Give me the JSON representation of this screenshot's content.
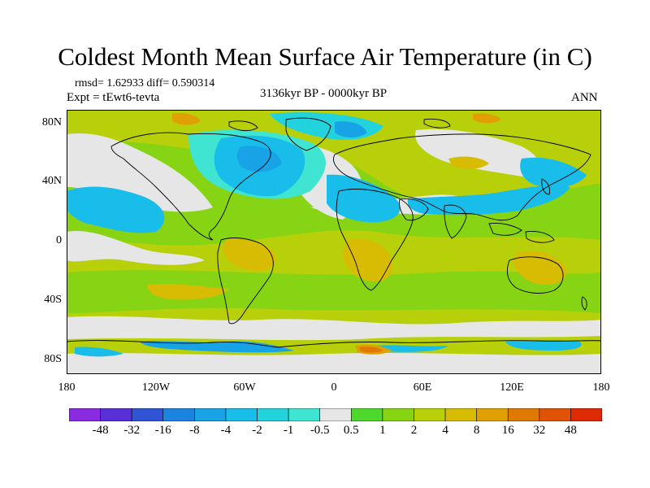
{
  "title": "Coldest Month Mean Surface Air Temperature (in C)",
  "stats": "rmsd= 1.62933 diff= 0.590314",
  "experiment": "Expt = tEwt6-tevta",
  "period": "3136kyr BP - 0000kyr BP",
  "season": "ANN",
  "lat_labels": [
    "80N",
    "40N",
    "0",
    "40S",
    "80S"
  ],
  "lon_labels": [
    "180",
    "120W",
    "60W",
    "0",
    "60E",
    "120E",
    "180"
  ],
  "colorbar": {
    "labels": [
      "-48",
      "-32",
      "-16",
      "-8",
      "-4",
      "-2",
      "-1",
      "-0.5",
      "0.5",
      "1",
      "2",
      "4",
      "8",
      "16",
      "32",
      "48"
    ],
    "colors": [
      "#8a2be2",
      "#5a2ed8",
      "#2f55d6",
      "#1a84e0",
      "#17a3e6",
      "#18bde9",
      "#22d2dc",
      "#3fe5d0",
      "#e6e6e6",
      "#4ed82b",
      "#86d414",
      "#b8d00a",
      "#d8bc04",
      "#e0a004",
      "#e07804",
      "#e05204",
      "#e02a04"
    ]
  }
}
